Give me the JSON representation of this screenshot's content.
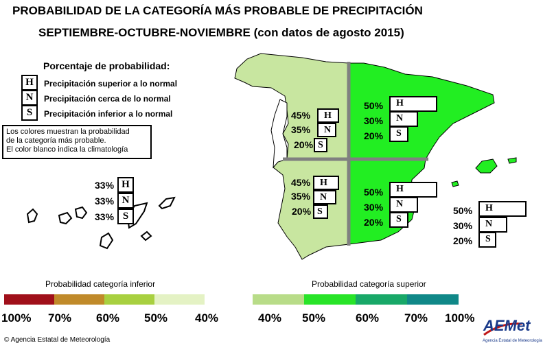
{
  "title": {
    "line1": "PROBABILIDAD DE LA CATEGORÍA MÁS PROBABLE DE PRECIPITACIÓN",
    "line2": "SEPTIEMBRE-OCTUBRE-NOVIEMBRE (con datos de agosto 2015)"
  },
  "legend": {
    "title": "Porcentaje de probabilidad:",
    "items": [
      {
        "letter": "H",
        "label": "Precipitación superior a lo normal"
      },
      {
        "letter": "N",
        "label": "Precipitación cerca de lo normal"
      },
      {
        "letter": "S",
        "label": "Precipitación inferior a lo normal"
      }
    ],
    "note": [
      "Los colores muestran la probabilidad",
      "de la categoría más probable.",
      "El color blanco indica la climatología"
    ]
  },
  "regions": {
    "northwest": {
      "color": "#c8e6a0",
      "H": "45%",
      "N": "35%",
      "S": "20%"
    },
    "northeast": {
      "color": "#22ee22",
      "H": "50%",
      "N": "30%",
      "S": "20%"
    },
    "southwest": {
      "color": "#c8e6a0",
      "H": "45%",
      "N": "35%",
      "S": "20%"
    },
    "southeast": {
      "color": "#22ee22",
      "H": "50%",
      "N": "30%",
      "S": "20%"
    },
    "canarias": {
      "color": "#ffffff",
      "H": "33%",
      "N": "33%",
      "S": "33%"
    },
    "baleares": {
      "color": "#22ee22",
      "H": "50%",
      "N": "30%",
      "S": "20%"
    }
  },
  "scale": {
    "lower_caption": "Probabilidad categoría inferior",
    "upper_caption": "Probabilidad categoría superior",
    "lower_colors": [
      "#a0101a",
      "#c08a2a",
      "#a8d040",
      "#e4f2c4"
    ],
    "upper_colors": [
      "#b8dc88",
      "#28e428",
      "#18a868",
      "#108888"
    ],
    "lower_labels": [
      "100%",
      "70%",
      "60%",
      "50%",
      "40%"
    ],
    "upper_labels": [
      "40%",
      "50%",
      "60%",
      "70%",
      "100%"
    ]
  },
  "footer": {
    "copyright": "© Agencia Estatal de Meteorología",
    "logo_text": "AEMet",
    "logo_sub": "Agencia Estatal de Meteorología"
  }
}
